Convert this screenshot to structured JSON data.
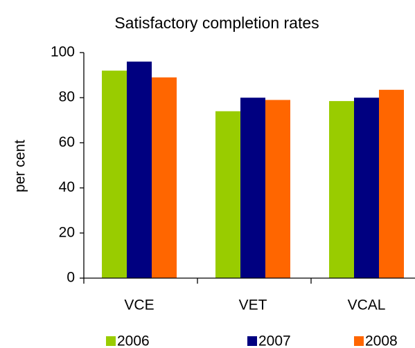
{
  "chart_data": {
    "type": "bar",
    "title": "Satisfactory completion rates",
    "y_label": "per cent",
    "categories": [
      "VCE",
      "VET",
      "VCAL"
    ],
    "series": [
      {
        "name": "2006",
        "color": "#99cc00",
        "values": [
          92,
          74,
          78.5
        ]
      },
      {
        "name": "2007",
        "color": "#000080",
        "values": [
          96,
          80,
          80
        ]
      },
      {
        "name": "2008",
        "color": "#ff6600",
        "values": [
          89,
          79,
          83.5
        ]
      }
    ],
    "ylim": [
      0,
      100
    ],
    "yticks": [
      0,
      20,
      40,
      60,
      80,
      100
    ],
    "grid": false,
    "legend": "bottom"
  }
}
